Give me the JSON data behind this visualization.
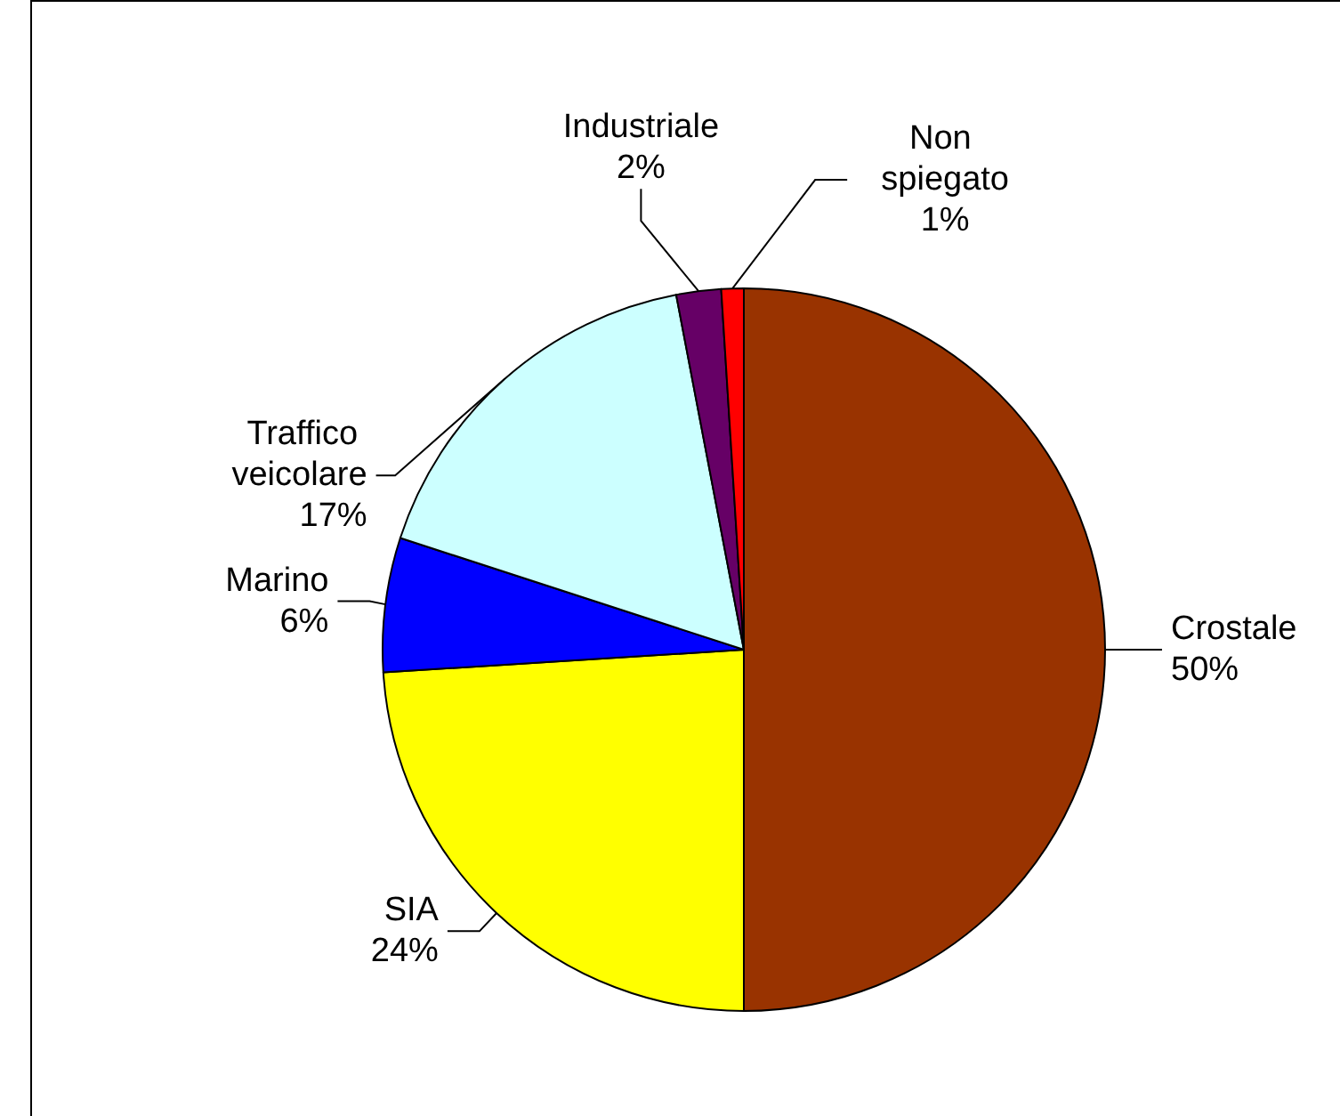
{
  "chart_data": {
    "type": "pie",
    "categories": [
      "Crostale",
      "SIA",
      "Marino",
      "Traffico veicolare",
      "Industriale",
      "Non spiegato"
    ],
    "values": [
      50,
      24,
      6,
      17,
      2,
      1
    ],
    "value_labels": [
      "50%",
      "24%",
      "6%",
      "17%",
      "2%",
      "1%"
    ],
    "colors": [
      "#993300",
      "#ffff00",
      "#0000ff",
      "#ccffff",
      "#660066",
      "#ff0000"
    ],
    "legend": false
  }
}
